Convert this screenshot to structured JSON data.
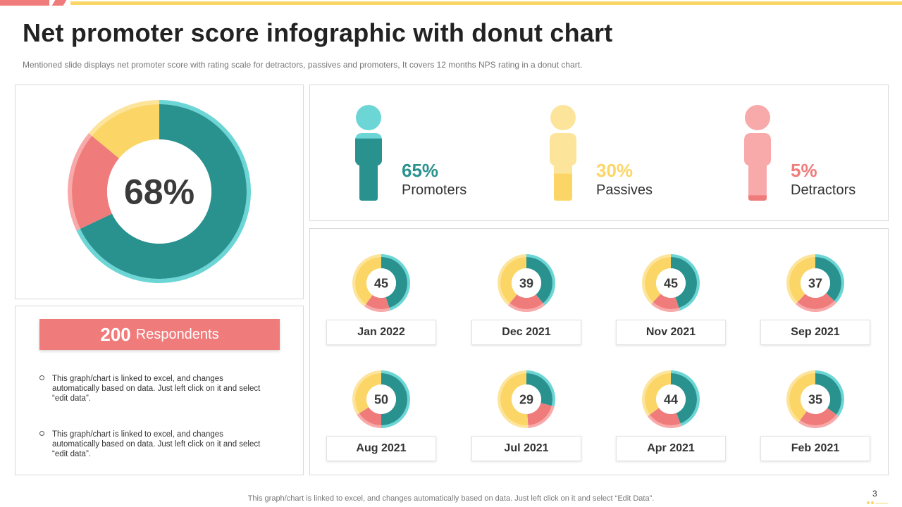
{
  "header": {
    "title": "Net promoter score infographic with donut chart",
    "subtitle": "Mentioned slide displays net promoter score with rating scale for detractors, passives and promoters, It covers 12 months NPS rating in a donut chart."
  },
  "colors": {
    "promoters": "#29928f",
    "passives": "#fbd666",
    "detractors": "#f07b7b",
    "promoters_light": "#6cd5d5",
    "passives_light": "#fde49b",
    "detractors_light": "#f8a9a9"
  },
  "respondents": {
    "count": "200",
    "label": "Respondents",
    "notes": [
      "This graph/chart is linked to excel, and changes automatically based on data. Just left click on it and select “edit data”.",
      "This graph/chart is linked to excel, and changes automatically based on data. Just left click on it and select “edit data”."
    ]
  },
  "people": [
    {
      "pct": "65%",
      "label": "Promoters",
      "icon": "person-icon"
    },
    {
      "pct": "30%",
      "label": "Passives",
      "icon": "person-icon"
    },
    {
      "pct": "5%",
      "label": "Detractors",
      "icon": "person-icon"
    }
  ],
  "footer": {
    "text": "This graph/chart is linked to excel, and changes automatically based on data. Just left click on it and select “Edit Data”.",
    "page": "3"
  },
  "chart_data": [
    {
      "type": "pie",
      "center_label": "68%",
      "categories": [
        "Promoters",
        "Detractors",
        "Passives"
      ],
      "values": [
        68,
        18,
        14
      ]
    },
    {
      "type": "pie",
      "categories": [
        "Promoters",
        "Detractors",
        "Passives"
      ],
      "monthly": [
        {
          "month": "Jan 2022",
          "score": "45",
          "values": [
            45,
            15,
            40
          ]
        },
        {
          "month": "Dec 2021",
          "score": "39",
          "values": [
            39,
            22,
            39
          ]
        },
        {
          "month": "Nov 2021",
          "score": "45",
          "values": [
            45,
            17,
            38
          ]
        },
        {
          "month": "Sep 2021",
          "score": "37",
          "values": [
            37,
            25,
            38
          ]
        },
        {
          "month": "Aug 2021",
          "score": "50",
          "values": [
            50,
            16,
            34
          ]
        },
        {
          "month": "Jul 2021",
          "score": "29",
          "values": [
            29,
            20,
            51
          ]
        },
        {
          "month": "Apr 2021",
          "score": "44",
          "values": [
            44,
            21,
            35
          ]
        },
        {
          "month": "Feb 2021",
          "score": "35",
          "values": [
            35,
            25,
            40
          ]
        }
      ]
    }
  ]
}
